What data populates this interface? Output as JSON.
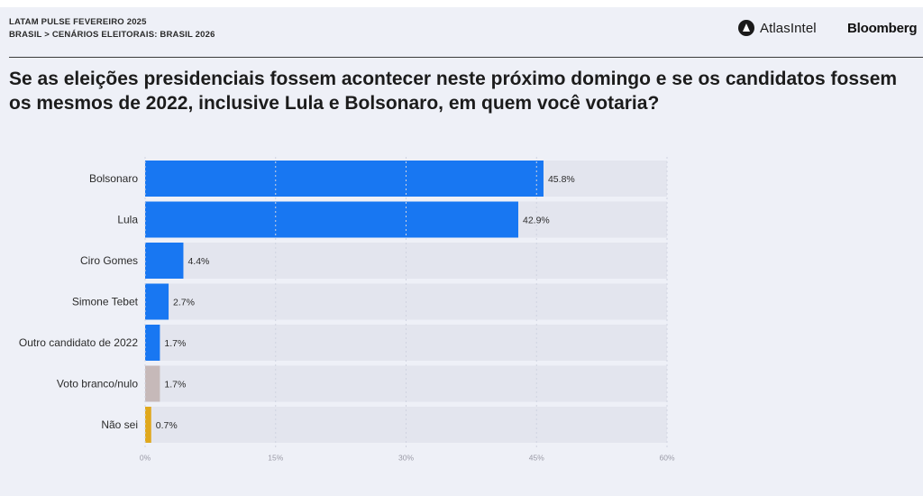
{
  "header": {
    "kicker_line1": "LATAM PULSE FEVEREIRO 2025",
    "kicker_line2": "BRASIL > CENÁRIOS ELEITORAIS: BRASIL 2026",
    "brand_atlas": "AtlasIntel",
    "brand_bloomberg": "Bloomberg"
  },
  "colors": {
    "primary_bar": "#1877f2",
    "neutral_bar": "#c6b9b9",
    "unsure_bar": "#e0a81c",
    "track": "#e3e5ee",
    "background": "#eef0f7"
  },
  "chart_data": {
    "type": "bar",
    "orientation": "horizontal",
    "title": "Se as eleições presidenciais fossem acontecer neste próximo domingo e se os candidatos fossem os mesmos de 2022, inclusive Lula e Bolsonaro, em quem você votaria?",
    "categories": [
      "Bolsonaro",
      "Lula",
      "Ciro Gomes",
      "Simone Tebet",
      "Outro candidato de 2022",
      "Voto branco/nulo",
      "Não sei"
    ],
    "values": [
      45.8,
      42.9,
      4.4,
      2.7,
      1.7,
      1.7,
      0.7
    ],
    "value_labels": [
      "45.8%",
      "42.9%",
      "4.4%",
      "2.7%",
      "1.7%",
      "1.7%",
      "0.7%"
    ],
    "bar_colors": [
      "#1877f2",
      "#1877f2",
      "#1877f2",
      "#1877f2",
      "#1877f2",
      "#c6b9b9",
      "#e0a81c"
    ],
    "xlim": [
      0,
      60
    ],
    "xticks": [
      0,
      15,
      30,
      45,
      60
    ],
    "xtick_labels": [
      "0%",
      "15%",
      "30%",
      "45%",
      "60%"
    ],
    "grid": true
  }
}
